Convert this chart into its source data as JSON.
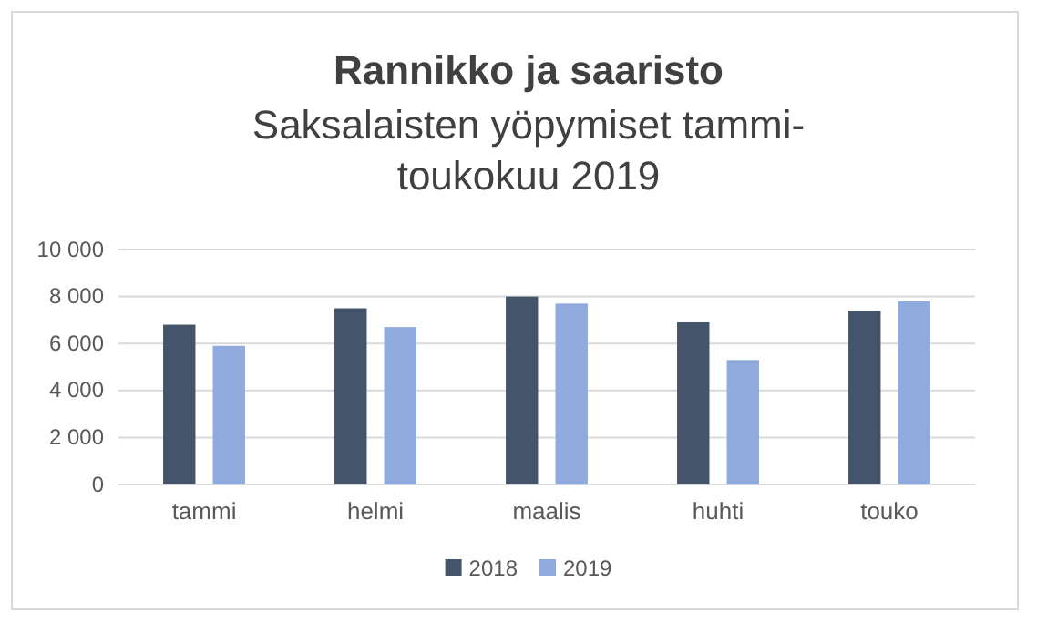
{
  "chart_data": {
    "type": "bar",
    "title": "Rannikko ja saaristo",
    "subtitle": "Saksalaisten yöpymiset tammi-toukokuu 2019",
    "categories": [
      "tammi",
      "helmi",
      "maalis",
      "huhti",
      "touko"
    ],
    "series": [
      {
        "name": "2018",
        "color": "#44546a",
        "values": [
          6800,
          7500,
          8000,
          6900,
          7400
        ]
      },
      {
        "name": "2019",
        "color": "#8faadc",
        "values": [
          5900,
          6700,
          7700,
          5300,
          7800
        ]
      }
    ],
    "ylim": [
      0,
      10000
    ],
    "yticks": [
      {
        "value": 0,
        "label": "0"
      },
      {
        "value": 2000,
        "label": "2 000"
      },
      {
        "value": 4000,
        "label": "4 000"
      },
      {
        "value": 6000,
        "label": "6 000"
      },
      {
        "value": 8000,
        "label": "8 000"
      },
      {
        "value": 10000,
        "label": "10 000"
      }
    ],
    "grid": "y",
    "legend": "bottom"
  }
}
